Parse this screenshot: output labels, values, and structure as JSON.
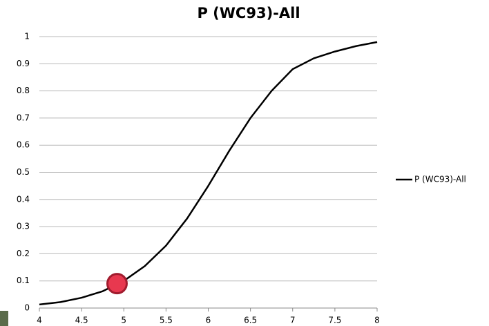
{
  "chart_data": {
    "type": "line",
    "title": "P (WC93)-All",
    "x": [
      4,
      4.25,
      4.5,
      4.75,
      5,
      5.25,
      5.5,
      5.75,
      6,
      6.25,
      6.5,
      6.75,
      7,
      7.25,
      7.5,
      7.75,
      8
    ],
    "series": [
      {
        "name": "P (WC93)-All",
        "color": "#000000",
        "values": [
          0.013,
          0.022,
          0.038,
          0.062,
          0.1,
          0.155,
          0.23,
          0.33,
          0.45,
          0.58,
          0.7,
          0.8,
          0.88,
          0.92,
          0.945,
          0.965,
          0.98
        ]
      }
    ],
    "marker": {
      "x": 4.92,
      "y": 0.09,
      "color": "#e8384f"
    },
    "xlim": [
      4,
      8
    ],
    "xticks": [
      4,
      4.5,
      5,
      5.5,
      6,
      6.5,
      7,
      7.5,
      8
    ],
    "ylim": [
      0,
      1
    ],
    "yticks": [
      0,
      0.1,
      0.2,
      0.3,
      0.4,
      0.5,
      0.6,
      0.7,
      0.8,
      0.9,
      1
    ],
    "grid": true,
    "legend": "right"
  }
}
